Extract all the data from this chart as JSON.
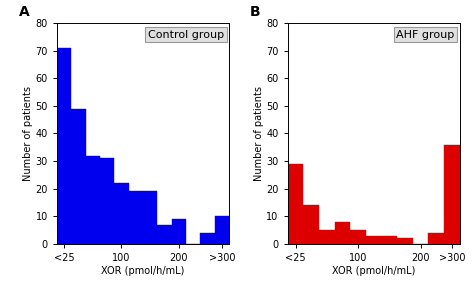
{
  "panel_A": {
    "label": "A",
    "title": "Control group",
    "bar_color": "#0000ee",
    "values": [
      71,
      49,
      32,
      31,
      22,
      19,
      19,
      7,
      9,
      0,
      4,
      10
    ],
    "ylim": [
      0,
      80
    ],
    "yticks": [
      0,
      10,
      20,
      30,
      40,
      50,
      60,
      70,
      80
    ],
    "xlabel": "XOR (pmol/h/mL)",
    "ylabel": "Number of patients"
  },
  "panel_B": {
    "label": "B",
    "title": "AHF group",
    "bar_color": "#dd0000",
    "values": [
      29,
      14,
      5,
      8,
      5,
      3,
      3,
      2,
      0,
      4,
      36
    ],
    "ylim": [
      0,
      80
    ],
    "yticks": [
      0,
      10,
      20,
      30,
      40,
      50,
      60,
      70,
      80
    ],
    "xlabel": "XOR (pmol/h/mL)",
    "ylabel": "Number of patients"
  },
  "xtick_positions_A": [
    0,
    4,
    8,
    11
  ],
  "xtick_labels_A": [
    "<25",
    "100",
    "200",
    ">300"
  ],
  "xtick_positions_B": [
    0,
    4,
    8,
    10
  ],
  "xtick_labels_B": [
    "<25",
    "100",
    "200",
    ">300"
  ],
  "background_color": "#ffffff",
  "box_facecolor": "#e0e0e0",
  "box_edgecolor": "#999999",
  "title_fontsize": 8,
  "label_fontsize": 10,
  "axis_fontsize": 7,
  "tick_fontsize": 7
}
